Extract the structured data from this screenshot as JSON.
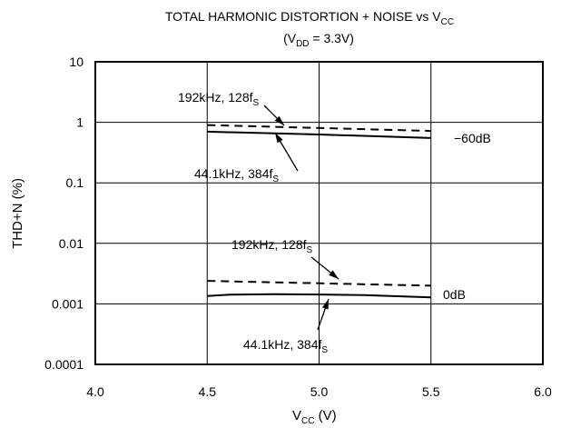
{
  "chart_data": {
    "type": "line",
    "title": "TOTAL HARMONIC DISTORTION + NOISE vs  V",
    "title_sub": "CC",
    "subtitle_pre": "(V",
    "subtitle_sub": "DD",
    "subtitle_post": " = 3.3V)",
    "xlabel": "V",
    "xlabel_sub": "CC",
    "xlabel_post": " (V)",
    "ylabel": "THD+N (%)",
    "xlim": [
      4.0,
      6.0
    ],
    "ylim": [
      0.0001,
      10
    ],
    "yscale": "log",
    "grid": true,
    "xticks": [
      "4.0",
      "4.5",
      "5.0",
      "5.5",
      "6.0"
    ],
    "yticks": [
      "0.0001",
      "0.001",
      "0.01",
      "0.1",
      "1",
      "10"
    ],
    "series": [
      {
        "label": "192kHz, 128f",
        "label_sub": "S",
        "style": "dashed",
        "group": "-60dB",
        "points": [
          [
            4.5,
            0.9
          ],
          [
            5.5,
            0.72
          ]
        ]
      },
      {
        "label": "44.1kHz, 384f",
        "label_sub": "S",
        "style": "solid",
        "group": "-60dB",
        "points": [
          [
            4.5,
            0.7
          ],
          [
            5.0,
            0.63
          ],
          [
            5.5,
            0.55
          ]
        ]
      },
      {
        "label": "192kHz, 128f",
        "label_sub": "S",
        "style": "dashed",
        "group": "0dB",
        "points": [
          [
            4.5,
            0.0024
          ],
          [
            5.5,
            0.002
          ]
        ]
      },
      {
        "label": "44.1kHz, 384f",
        "label_sub": "S",
        "style": "solid",
        "group": "0dB",
        "points": [
          [
            4.5,
            0.00135
          ],
          [
            4.6,
            0.00142
          ],
          [
            4.8,
            0.00145
          ],
          [
            5.0,
            0.00143
          ],
          [
            5.2,
            0.0014
          ],
          [
            5.5,
            0.00128
          ]
        ]
      }
    ],
    "curve_labels": [
      "−60dB",
      "0dB"
    ]
  }
}
